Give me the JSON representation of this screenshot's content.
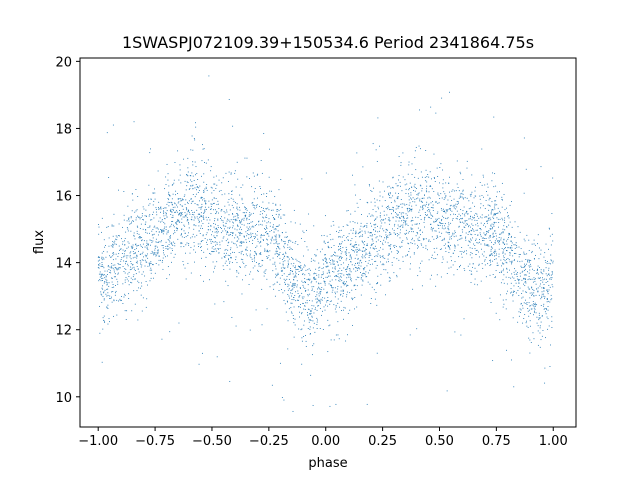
{
  "chart_data": {
    "type": "scatter",
    "title": "1SWASPJ072109.39+150534.6 Period 2341864.75s",
    "xlabel": "phase",
    "ylabel": "flux",
    "xlim": [
      -1.08,
      1.1
    ],
    "ylim": [
      9.1,
      20.1
    ],
    "x_ticks": [
      -1.0,
      -0.75,
      -0.5,
      -0.25,
      0.0,
      0.25,
      0.5,
      0.75,
      1.0
    ],
    "x_tick_labels": [
      "−1.00",
      "−0.75",
      "−0.50",
      "−0.25",
      "0.00",
      "0.25",
      "0.50",
      "0.75",
      "1.00"
    ],
    "y_ticks": [
      10,
      12,
      14,
      16,
      18,
      20
    ],
    "y_tick_labels": [
      "10",
      "12",
      "14",
      "16",
      "18",
      "20"
    ],
    "grid": false,
    "marker_color": "#1f77b4",
    "profile": {
      "phase": [
        0.0,
        0.02,
        0.05,
        0.08,
        0.12,
        0.18,
        0.22,
        0.26,
        0.3,
        0.35,
        0.4,
        0.45,
        0.5,
        0.55,
        0.6,
        0.65,
        0.7,
        0.75,
        0.78,
        0.82,
        0.86,
        0.9,
        0.94,
        0.97,
        1.0
      ],
      "flux": [
        13.8,
        13.6,
        13.7,
        13.9,
        14.2,
        14.5,
        14.6,
        14.9,
        15.2,
        15.4,
        15.7,
        15.5,
        15.3,
        15.1,
        15.0,
        14.9,
        14.9,
        14.8,
        14.5,
        14.0,
        13.5,
        13.2,
        13.0,
        13.3,
        13.8
      ]
    }
  }
}
